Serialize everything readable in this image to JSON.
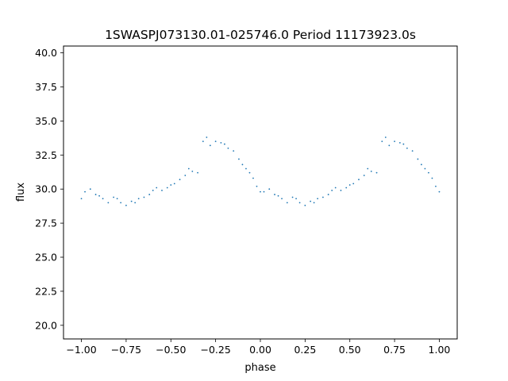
{
  "chart_data": {
    "type": "scatter",
    "title": "1SWASPJ073130.01-025746.0 Period 11173923.0s",
    "xlabel": "phase",
    "ylabel": "flux",
    "xlim": [
      -1.1,
      1.1
    ],
    "ylim": [
      19.0,
      40.5
    ],
    "xticks": [
      -1.0,
      -0.75,
      -0.5,
      -0.25,
      0.0,
      0.25,
      0.5,
      0.75,
      1.0
    ],
    "xtick_labels": [
      "−1.00",
      "−0.75",
      "−0.50",
      "−0.25",
      "0.00",
      "0.25",
      "0.50",
      "0.75",
      "1.00"
    ],
    "yticks": [
      20.0,
      22.5,
      25.0,
      27.5,
      30.0,
      32.5,
      35.0,
      37.5,
      40.0
    ],
    "ytick_labels": [
      "20.0",
      "22.5",
      "25.0",
      "27.5",
      "30.0",
      "32.5",
      "35.0",
      "37.5",
      "40.0"
    ],
    "grid": false,
    "marker_color": "#1f77b4",
    "series": [
      {
        "points_phase_flux": [
          [
            -1.0,
            29.3
          ],
          [
            -0.98,
            29.8
          ],
          [
            -0.95,
            30.0
          ],
          [
            -0.92,
            29.6
          ],
          [
            -0.9,
            29.5
          ],
          [
            -0.88,
            29.3
          ],
          [
            -0.85,
            29.0
          ],
          [
            -0.82,
            29.4
          ],
          [
            -0.8,
            29.3
          ],
          [
            -0.78,
            29.0
          ],
          [
            -0.75,
            28.8
          ],
          [
            -0.72,
            29.1
          ],
          [
            -0.7,
            29.0
          ],
          [
            -0.68,
            29.3
          ],
          [
            -0.65,
            29.4
          ],
          [
            -0.62,
            29.6
          ],
          [
            -0.6,
            29.9
          ],
          [
            -0.58,
            30.1
          ],
          [
            -0.55,
            29.9
          ],
          [
            -0.52,
            30.1
          ],
          [
            -0.5,
            30.3
          ],
          [
            -0.48,
            30.4
          ],
          [
            -0.45,
            30.7
          ],
          [
            -0.42,
            31.0
          ],
          [
            -0.4,
            31.5
          ],
          [
            -0.38,
            31.3
          ],
          [
            -0.35,
            31.2
          ],
          [
            -0.32,
            33.5
          ],
          [
            -0.3,
            33.8
          ],
          [
            -0.28,
            33.2
          ],
          [
            -0.25,
            33.5
          ],
          [
            -0.22,
            33.4
          ],
          [
            -0.2,
            33.3
          ],
          [
            -0.18,
            33.0
          ],
          [
            -0.15,
            32.8
          ],
          [
            -0.12,
            32.2
          ],
          [
            -0.1,
            31.8
          ],
          [
            -0.08,
            31.5
          ],
          [
            -0.06,
            31.2
          ],
          [
            -0.04,
            30.8
          ],
          [
            -0.02,
            30.2
          ],
          [
            0.0,
            29.8
          ],
          [
            0.02,
            29.8
          ],
          [
            0.05,
            30.0
          ],
          [
            0.08,
            29.6
          ],
          [
            0.1,
            29.5
          ],
          [
            0.12,
            29.3
          ],
          [
            0.15,
            29.0
          ],
          [
            0.18,
            29.4
          ],
          [
            0.2,
            29.3
          ],
          [
            0.22,
            29.0
          ],
          [
            0.25,
            28.8
          ],
          [
            0.28,
            29.1
          ],
          [
            0.3,
            29.0
          ],
          [
            0.32,
            29.3
          ],
          [
            0.35,
            29.4
          ],
          [
            0.38,
            29.6
          ],
          [
            0.4,
            29.9
          ],
          [
            0.42,
            30.1
          ],
          [
            0.45,
            29.9
          ],
          [
            0.48,
            30.1
          ],
          [
            0.5,
            30.3
          ],
          [
            0.52,
            30.4
          ],
          [
            0.55,
            30.7
          ],
          [
            0.58,
            31.0
          ],
          [
            0.6,
            31.5
          ],
          [
            0.62,
            31.3
          ],
          [
            0.65,
            31.2
          ],
          [
            0.68,
            33.5
          ],
          [
            0.7,
            33.8
          ],
          [
            0.72,
            33.2
          ],
          [
            0.75,
            33.5
          ],
          [
            0.78,
            33.4
          ],
          [
            0.8,
            33.3
          ],
          [
            0.82,
            33.0
          ],
          [
            0.85,
            32.8
          ],
          [
            0.88,
            32.2
          ],
          [
            0.9,
            31.8
          ],
          [
            0.92,
            31.5
          ],
          [
            0.94,
            31.2
          ],
          [
            0.96,
            30.8
          ],
          [
            0.98,
            30.2
          ],
          [
            1.0,
            29.8
          ]
        ]
      }
    ]
  }
}
